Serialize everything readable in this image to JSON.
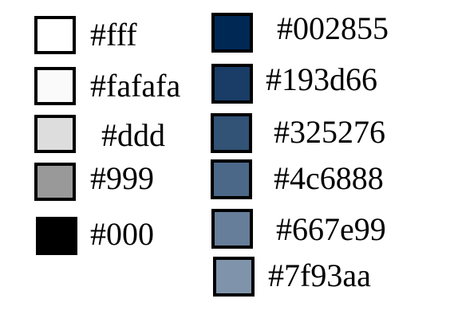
{
  "swatches": [
    {
      "color": "#ffffff",
      "label": "#fff"
    },
    {
      "color": "#fafafa",
      "label": "#fafafa"
    },
    {
      "color": "#dddddd",
      "label": "#ddd"
    },
    {
      "color": "#999999",
      "label": "#999"
    },
    {
      "color": "#000000",
      "label": "#000"
    },
    {
      "color": "#002855",
      "label": "#002855"
    },
    {
      "color": "#193d66",
      "label": "#193d66"
    },
    {
      "color": "#325276",
      "label": "#325276"
    },
    {
      "color": "#4c6888",
      "label": "#4c6888"
    },
    {
      "color": "#667e99",
      "label": "#667e99"
    },
    {
      "color": "#7f93aa",
      "label": "#7f93aa"
    }
  ]
}
